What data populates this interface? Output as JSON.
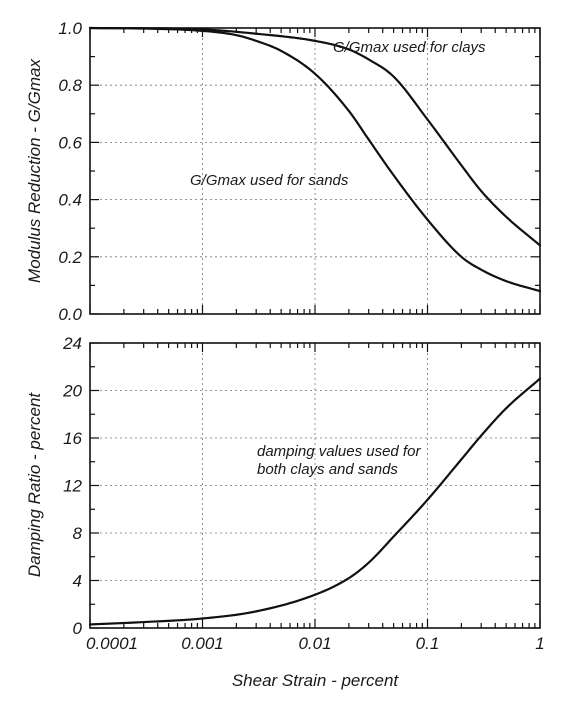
{
  "chart_data": [
    {
      "type": "line",
      "x_scale": "log",
      "xlim": [
        0.0001,
        1
      ],
      "ylim": [
        0,
        1
      ],
      "ylabel": "Modulus Reduction - G/Gmax",
      "y_ticks": [
        "0.0",
        "0.2",
        "0.4",
        "0.6",
        "0.8",
        "1.0"
      ],
      "grid": true,
      "series": [
        {
          "name": "G/Gmax used for clays",
          "x": [
            0.0001,
            0.001,
            0.003,
            0.01,
            0.02,
            0.03,
            0.05,
            0.1,
            0.2,
            0.3,
            0.5,
            1
          ],
          "y": [
            1.0,
            0.995,
            0.98,
            0.955,
            0.925,
            0.89,
            0.83,
            0.68,
            0.52,
            0.43,
            0.34,
            0.24
          ]
        },
        {
          "name": "G/Gmax used for sands",
          "x": [
            0.0001,
            0.0003,
            0.001,
            0.002,
            0.003,
            0.005,
            0.01,
            0.02,
            0.03,
            0.05,
            0.1,
            0.2,
            0.3,
            0.5,
            1
          ],
          "y": [
            1.0,
            0.998,
            0.99,
            0.975,
            0.955,
            0.92,
            0.84,
            0.71,
            0.61,
            0.485,
            0.33,
            0.2,
            0.155,
            0.115,
            0.08
          ]
        }
      ]
    },
    {
      "type": "line",
      "x_scale": "log",
      "xlim": [
        0.0001,
        1
      ],
      "ylim": [
        0,
        24
      ],
      "xlabel": "Shear Strain - percent",
      "ylabel": "Damping Ratio - percent",
      "x_ticks": [
        "0.0001",
        "0.001",
        "0.01",
        "0.1",
        "1"
      ],
      "y_ticks": [
        "0",
        "4",
        "8",
        "12",
        "16",
        "20",
        "24"
      ],
      "grid": true,
      "series": [
        {
          "name": "damping values used for both clays and sands",
          "x": [
            0.0001,
            0.0003,
            0.001,
            0.003,
            0.01,
            0.02,
            0.03,
            0.05,
            0.1,
            0.2,
            0.3,
            0.5,
            1
          ],
          "y": [
            0.3,
            0.5,
            0.8,
            1.4,
            2.8,
            4.2,
            5.5,
            7.7,
            10.8,
            14.2,
            16.2,
            18.5,
            21.0
          ]
        }
      ]
    }
  ],
  "annotations": {
    "clays": "G/Gmax used for clays",
    "sands": "G/Gmax used for sands",
    "damping_line1": "damping values used for",
    "damping_line2": "both clays and sands"
  }
}
